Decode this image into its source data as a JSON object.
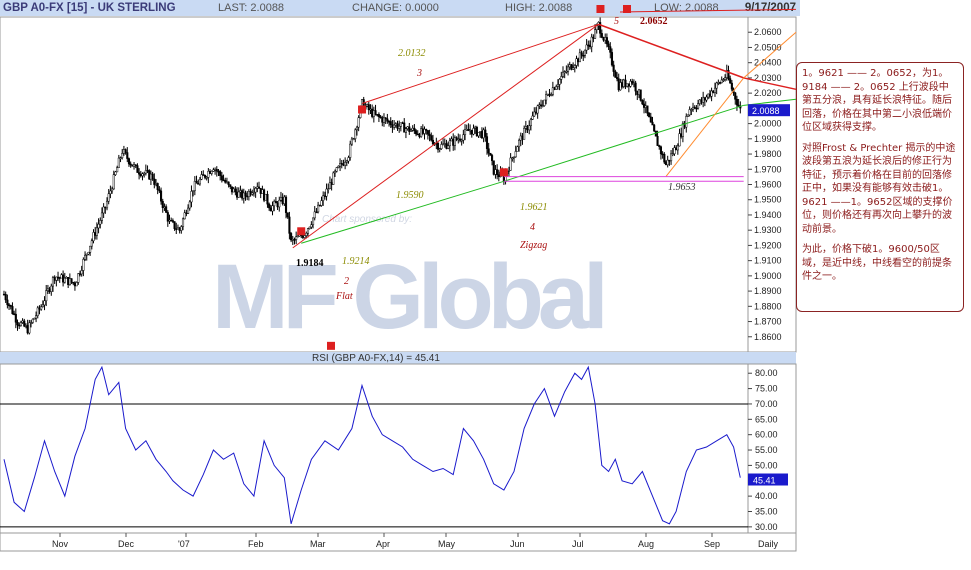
{
  "header": {
    "symbol": "GBP A0-FX [15] - UK STERLING",
    "last": "LAST: 2.0088",
    "change": "CHANGE: 0.0000",
    "high": "HIGH: 2.0088",
    "low": "LOW: 2.0088",
    "date": "9/17/2007"
  },
  "rsi_title": "RSI (GBP A0-FX,14) = 45.41",
  "watermark": {
    "line1": "Chart sponsored by:",
    "brand": "MF Global"
  },
  "note": {
    "p1": "1。9621 —— 2。0652，为1。9184 —— 2。0652 上行波段中第五分浪，具有延长浪特征。随后回落，价格在其中第二小浪低端价位区域获得支撑。",
    "p2": "对照Frost & Prechter 揭示的中途波段第五浪为延长浪后的修正行为特征，预示着价格在目前的回落修正中，如果没有能够有效击破1。9621 ——1。9652区域的支撑价位，则价格还有再次向上攀升的波动前景。",
    "p3": "为此，价格下破1。9600/50区域，是近中线，中线看空的前提条件之一。"
  },
  "annotations": {
    "wave5": "5",
    "p20652": "2.0652",
    "p20132": "2.0132",
    "wave3": "3",
    "p19590": "1.9590",
    "p19621": "1.9621",
    "wave4": "4",
    "zigzag": "Zigzag",
    "p19184": "1.9184",
    "p19214": "1.9214",
    "wave2": "2",
    "flat": "Flat",
    "p19653": "1.9653"
  },
  "price_last_label": "2.0088",
  "rsi_last_label": "45.41",
  "colors": {
    "candle": "#000000",
    "rsi": "#1a1acc",
    "red": "#dd2020",
    "green": "#22bb22",
    "orange": "#ff8c30",
    "magenta": "#dd44dd",
    "axis_bg": "#c9daf3",
    "label_bg": "#1a1acc"
  },
  "chart_data": [
    {
      "type": "candlestick",
      "interval": "Daily",
      "ylim": [
        1.85,
        2.07
      ],
      "yticks": [
        "1.8600",
        "1.8700",
        "1.8800",
        "1.8900",
        "1.9000",
        "1.9100",
        "1.9200",
        "1.9300",
        "1.9400",
        "1.9500",
        "1.9600",
        "1.9700",
        "1.9800",
        "1.9900",
        "2.0000",
        "2.0100",
        "2.0200",
        "2.0300",
        "2.0400",
        "2.0500",
        "2.0600"
      ],
      "xlabels": [
        "Nov",
        "Dec",
        "'07",
        "Feb",
        "Mar",
        "Apr",
        "May",
        "Jun",
        "Jul",
        "Aug",
        "Sep",
        "Daily"
      ],
      "close_path": [
        [
          0,
          1.888
        ],
        [
          8,
          1.87
        ],
        [
          14,
          1.865
        ],
        [
          22,
          1.88
        ],
        [
          30,
          1.9
        ],
        [
          42,
          1.895
        ],
        [
          50,
          1.918
        ],
        [
          60,
          1.945
        ],
        [
          70,
          1.982
        ],
        [
          78,
          1.97
        ],
        [
          88,
          1.965
        ],
        [
          98,
          1.935
        ],
        [
          104,
          1.93
        ],
        [
          112,
          1.958
        ],
        [
          124,
          1.972
        ],
        [
          134,
          1.957
        ],
        [
          142,
          1.952
        ],
        [
          150,
          1.96
        ],
        [
          158,
          1.945
        ],
        [
          166,
          1.95
        ],
        [
          170,
          1.922
        ],
        [
          178,
          1.928
        ],
        [
          186,
          1.944
        ],
        [
          196,
          1.967
        ],
        [
          204,
          1.98
        ],
        [
          212,
          2.013
        ],
        [
          220,
          2.005
        ],
        [
          230,
          2.0
        ],
        [
          240,
          1.996
        ],
        [
          250,
          1.993
        ],
        [
          258,
          1.985
        ],
        [
          266,
          1.988
        ],
        [
          276,
          1.996
        ],
        [
          284,
          1.993
        ],
        [
          290,
          1.969
        ],
        [
          296,
          1.964
        ],
        [
          304,
          1.986
        ],
        [
          314,
          2.006
        ],
        [
          324,
          2.022
        ],
        [
          334,
          2.036
        ],
        [
          342,
          2.045
        ],
        [
          348,
          2.055
        ],
        [
          352,
          2.065
        ],
        [
          358,
          2.048
        ],
        [
          364,
          2.025
        ],
        [
          372,
          2.028
        ],
        [
          378,
          2.015
        ],
        [
          386,
          1.99
        ],
        [
          392,
          1.973
        ],
        [
          398,
          1.985
        ],
        [
          406,
          2.01
        ],
        [
          414,
          2.015
        ],
        [
          422,
          2.025
        ],
        [
          428,
          2.032
        ],
        [
          432,
          2.02
        ],
        [
          436,
          2.009
        ]
      ],
      "lines": [
        {
          "color": "red",
          "from": [
            171,
            1.9184
          ],
          "to": [
            352,
            2.0652
          ]
        },
        {
          "color": "red",
          "from": [
            212,
            2.0132
          ],
          "to": [
            352,
            2.0652
          ]
        },
        {
          "color": "red",
          "from": [
            352,
            2.0652
          ],
          "to": [
            438,
            2.03
          ]
        },
        {
          "color": "green",
          "from": [
            176,
            1.9214
          ],
          "to": [
            296,
            1.9621
          ]
        },
        {
          "color": "green",
          "from": [
            296,
            1.9621
          ],
          "to": [
            438,
            2.012
          ]
        },
        {
          "color": "orange",
          "from": [
            392,
            1.9653
          ],
          "to": [
            438,
            2.03
          ]
        },
        {
          "color": "magenta",
          "from": [
            296,
            1.9621
          ],
          "to": [
            438,
            1.9621
          ]
        },
        {
          "color": "magenta",
          "from": [
            296,
            1.9652
          ],
          "to": [
            438,
            1.9652
          ]
        }
      ]
    },
    {
      "type": "line",
      "name": "RSI",
      "ylim": [
        28,
        83
      ],
      "yticks": [
        "30.00",
        "35.00",
        "40.00",
        "45.00",
        "50.00",
        "55.00",
        "60.00",
        "65.00",
        "70.00",
        "75.00",
        "80.00"
      ],
      "reference_lines": [
        70,
        30
      ],
      "x": [
        0,
        6,
        12,
        18,
        24,
        30,
        36,
        42,
        48,
        54,
        58,
        62,
        68,
        72,
        78,
        84,
        90,
        96,
        100,
        106,
        112,
        118,
        124,
        130,
        136,
        142,
        148,
        154,
        160,
        166,
        170,
        176,
        182,
        190,
        198,
        206,
        212,
        218,
        224,
        230,
        236,
        242,
        248,
        254,
        260,
        266,
        272,
        278,
        284,
        290,
        296,
        302,
        308,
        314,
        320,
        326,
        332,
        338,
        342,
        346,
        350,
        354,
        358,
        362,
        366,
        372,
        378,
        384,
        390,
        394,
        398,
        404,
        410,
        416,
        422,
        428,
        432,
        436
      ],
      "values": [
        52,
        38,
        35,
        46,
        58,
        48,
        40,
        53,
        62,
        78,
        82,
        73,
        77,
        62,
        55,
        58,
        52,
        48,
        45,
        42,
        40,
        47,
        55,
        52,
        54,
        44,
        40,
        58,
        50,
        46,
        31,
        42,
        52,
        58,
        55,
        62,
        76,
        66,
        60,
        58,
        56,
        52,
        50,
        48,
        49,
        47,
        62,
        58,
        52,
        44,
        42,
        48,
        62,
        70,
        75,
        66,
        74,
        80,
        78,
        82,
        70,
        50,
        48,
        52,
        45,
        44,
        48,
        40,
        32,
        31,
        35,
        48,
        55,
        56,
        58,
        60,
        56,
        46
      ]
    }
  ]
}
